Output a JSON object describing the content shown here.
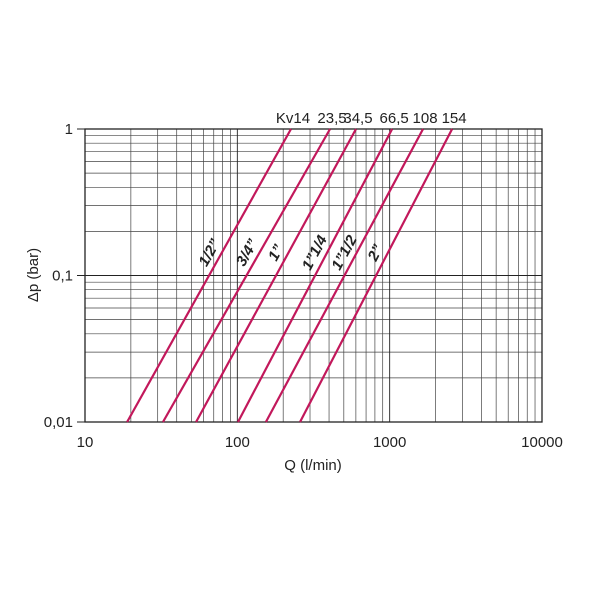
{
  "chart_data": {
    "type": "line",
    "xlabel": "Q (l/min)",
    "ylabel": "Δp (bar)",
    "log_x": true,
    "log_y": true,
    "grid": true,
    "xlim": [
      10,
      10000
    ],
    "ylim": [
      0.01,
      1
    ],
    "xticks": [
      10,
      100,
      1000,
      10000
    ],
    "yticks": [
      {
        "value": 0.01,
        "label": "0,01"
      },
      {
        "value": 0.1,
        "label": "0,1"
      },
      1
    ],
    "x_minor_ticks": [
      20,
      30,
      40,
      50,
      60,
      70,
      80,
      90,
      200,
      300,
      400,
      500,
      600,
      700,
      800,
      900,
      2000,
      3000,
      4000,
      5000,
      6000,
      7000,
      8000,
      9000
    ],
    "y_minor_ticks": [
      0.02,
      0.03,
      0.04,
      0.05,
      0.06,
      0.07,
      0.08,
      0.09,
      0.2,
      0.3,
      0.4,
      0.5,
      0.6,
      0.7,
      0.8,
      0.9
    ],
    "series": [
      {
        "name": "1/2”",
        "kv_label": "Kv14",
        "color": "#c2185b",
        "x": [
          18.9,
          225
        ],
        "values": [
          0.01,
          1
        ]
      },
      {
        "name": "3/4”",
        "kv_label": "23,5",
        "color": "#c2185b",
        "x": [
          32.5,
          406
        ],
        "values": [
          0.01,
          1
        ]
      },
      {
        "name": "1”",
        "kv_label": "34,5",
        "color": "#c2185b",
        "x": [
          53.6,
          601
        ],
        "values": [
          0.01,
          1
        ]
      },
      {
        "name": "1”1/4",
        "kv_label": "66,5",
        "color": "#c2185b",
        "x": [
          101,
          1038
        ],
        "values": [
          0.01,
          1
        ]
      },
      {
        "name": "1”1/2",
        "kv_label": "108",
        "color": "#c2185b",
        "x": [
          154,
          1656
        ],
        "values": [
          0.01,
          1
        ]
      },
      {
        "name": "2”",
        "kv_label": "154",
        "color": "#c2185b",
        "x": [
          258,
          2570
        ],
        "values": [
          0.01,
          1
        ]
      }
    ]
  }
}
